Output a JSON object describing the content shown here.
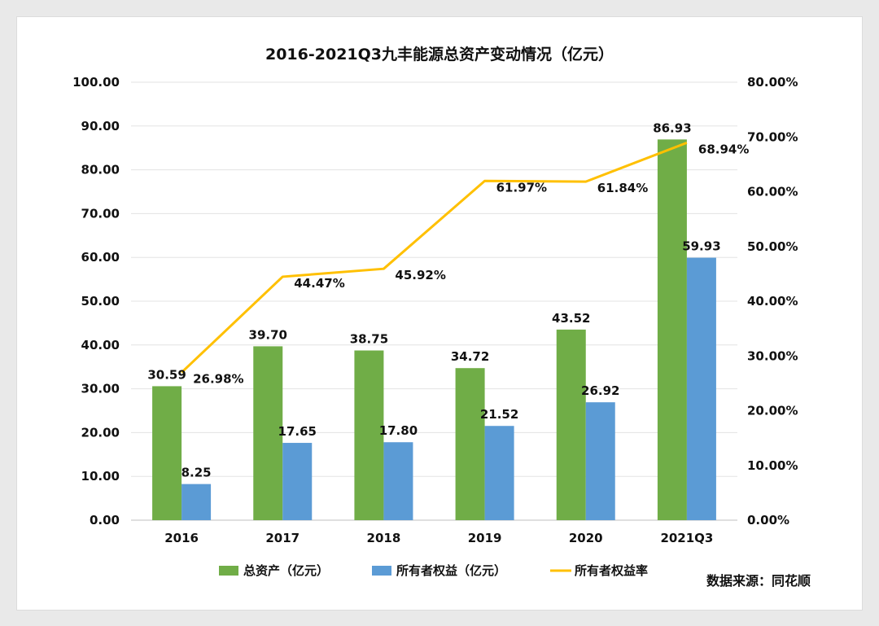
{
  "chart_data": {
    "type": "bar",
    "title": "2016-2021Q3九丰能源总资产变动情况（亿元）",
    "categories": [
      "2016",
      "2017",
      "2018",
      "2019",
      "2020",
      "2021Q3"
    ],
    "series": [
      {
        "name": "总资产（亿元）",
        "type": "bar",
        "axis": "left",
        "color": "#70ad47",
        "values": [
          30.59,
          39.7,
          38.75,
          34.72,
          43.52,
          86.93
        ],
        "labels": [
          "30.59",
          "39.70",
          "38.75",
          "34.72",
          "43.52",
          "86.93"
        ]
      },
      {
        "name": "所有者权益（亿元）",
        "type": "bar",
        "axis": "left",
        "color": "#5b9bd5",
        "values": [
          8.25,
          17.65,
          17.8,
          21.52,
          26.92,
          59.93
        ],
        "labels": [
          "8.25",
          "17.65",
          "17.80",
          "21.52",
          "26.92",
          "59.93"
        ]
      },
      {
        "name": "所有者权益率",
        "type": "line",
        "axis": "right",
        "color": "#ffc000",
        "values": [
          26.98,
          44.47,
          45.92,
          61.97,
          61.84,
          68.94
        ],
        "labels": [
          "26.98%",
          "44.47%",
          "45.92%",
          "61.97%",
          "61.84%",
          "68.94%"
        ]
      }
    ],
    "y_left": {
      "range": [
        0,
        100
      ],
      "ticks": [
        "0.00",
        "10.00",
        "20.00",
        "30.00",
        "40.00",
        "50.00",
        "60.00",
        "70.00",
        "80.00",
        "90.00",
        "100.00"
      ]
    },
    "y_right": {
      "range": [
        0,
        80
      ],
      "unit": "%",
      "ticks": [
        "0.00%",
        "10.00%",
        "20.00%",
        "30.00%",
        "40.00%",
        "50.00%",
        "60.00%",
        "70.00%",
        "80.00%"
      ]
    },
    "grid": true,
    "legend_position": "bottom"
  },
  "source_note": "数据来源：同花顺"
}
